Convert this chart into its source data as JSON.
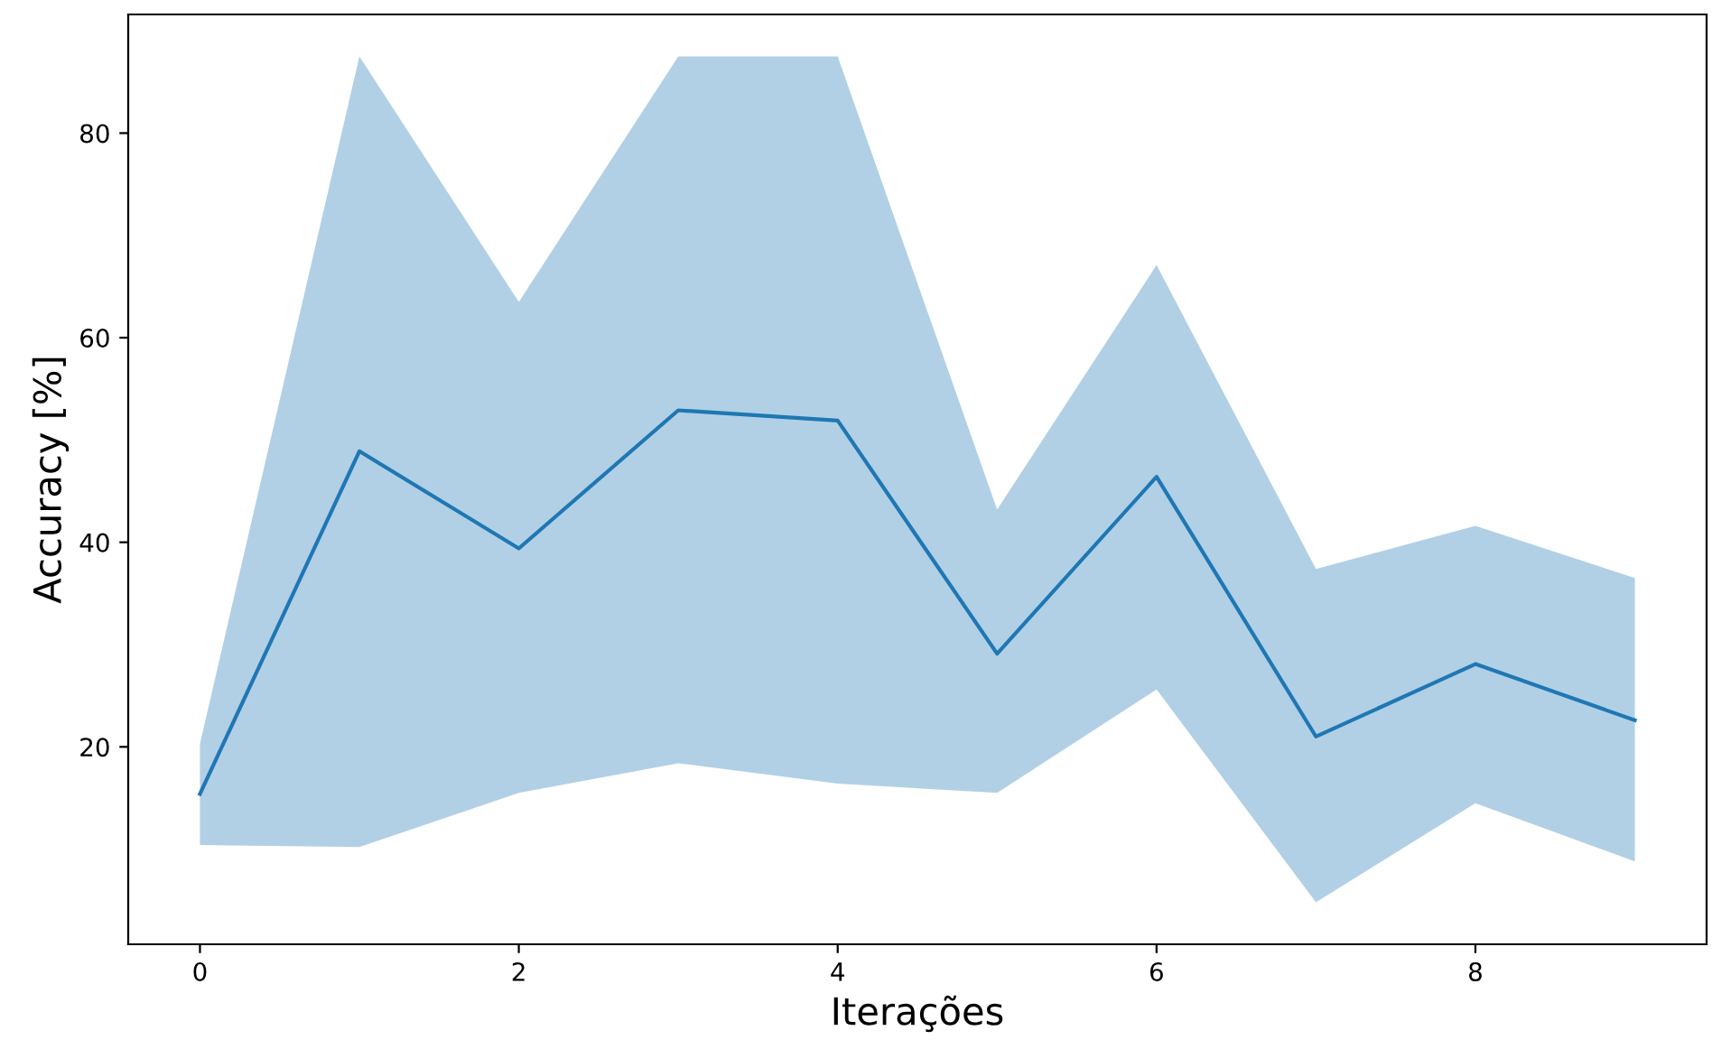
{
  "chart_data": {
    "type": "line",
    "xlabel": "Iterações",
    "ylabel": "Accuracy [%]",
    "x": [
      0,
      1,
      2,
      3,
      4,
      5,
      6,
      7,
      8,
      9
    ],
    "series": [
      {
        "color": "#1f77b4",
        "values": [
          15.4,
          48.9,
          39.4,
          52.9,
          51.9,
          29.1,
          46.4,
          21.0,
          28.1,
          22.6
        ],
        "lower": [
          10.4,
          10.2,
          15.5,
          18.4,
          16.4,
          15.5,
          25.6,
          4.8,
          14.5,
          8.8
        ],
        "upper": [
          20.3,
          87.5,
          63.5,
          87.5,
          87.5,
          43.2,
          67.1,
          37.4,
          41.6,
          36.5
        ]
      }
    ],
    "xlim": [
      -0.45,
      9.45
    ],
    "ylim": [
      0.7,
      91.6
    ],
    "xticks": [
      0,
      2,
      4,
      6,
      8
    ],
    "yticks": [
      20,
      40,
      60,
      80
    ],
    "grid": false
  }
}
